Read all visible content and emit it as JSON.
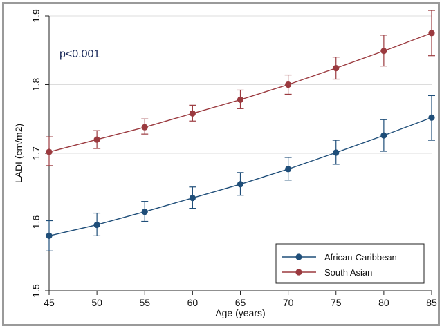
{
  "chart_data": {
    "type": "line",
    "xlabel": "Age (years)",
    "ylabel": "LADI (cm/m2)",
    "x": [
      45,
      50,
      55,
      60,
      65,
      70,
      75,
      80,
      85
    ],
    "xlim": [
      45,
      85
    ],
    "ylim": [
      1.5,
      1.9
    ],
    "xticks": [
      "45",
      "50",
      "55",
      "60",
      "65",
      "70",
      "75",
      "80",
      "85"
    ],
    "yticks": [
      "1.5",
      "1.6",
      "1.7",
      "1.8",
      "1.9"
    ],
    "annotation": "p<0.001",
    "legend_position": "bottom-right",
    "grid": "horizontal",
    "series": [
      {
        "name": "African-Caribbean",
        "color": "#1f4e79",
        "values": [
          1.58,
          1.596,
          1.615,
          1.635,
          1.655,
          1.677,
          1.701,
          1.726,
          1.752
        ],
        "lower": [
          1.558,
          1.58,
          1.601,
          1.62,
          1.639,
          1.661,
          1.684,
          1.703,
          1.719
        ],
        "upper": [
          1.602,
          1.613,
          1.63,
          1.651,
          1.672,
          1.694,
          1.719,
          1.749,
          1.784
        ]
      },
      {
        "name": "South Asian",
        "color": "#9b3a3f",
        "values": [
          1.702,
          1.72,
          1.738,
          1.758,
          1.778,
          1.8,
          1.824,
          1.849,
          1.875
        ],
        "lower": [
          1.682,
          1.707,
          1.728,
          1.747,
          1.765,
          1.786,
          1.808,
          1.827,
          1.842
        ],
        "upper": [
          1.724,
          1.733,
          1.75,
          1.77,
          1.792,
          1.814,
          1.84,
          1.872,
          1.908
        ]
      }
    ]
  }
}
